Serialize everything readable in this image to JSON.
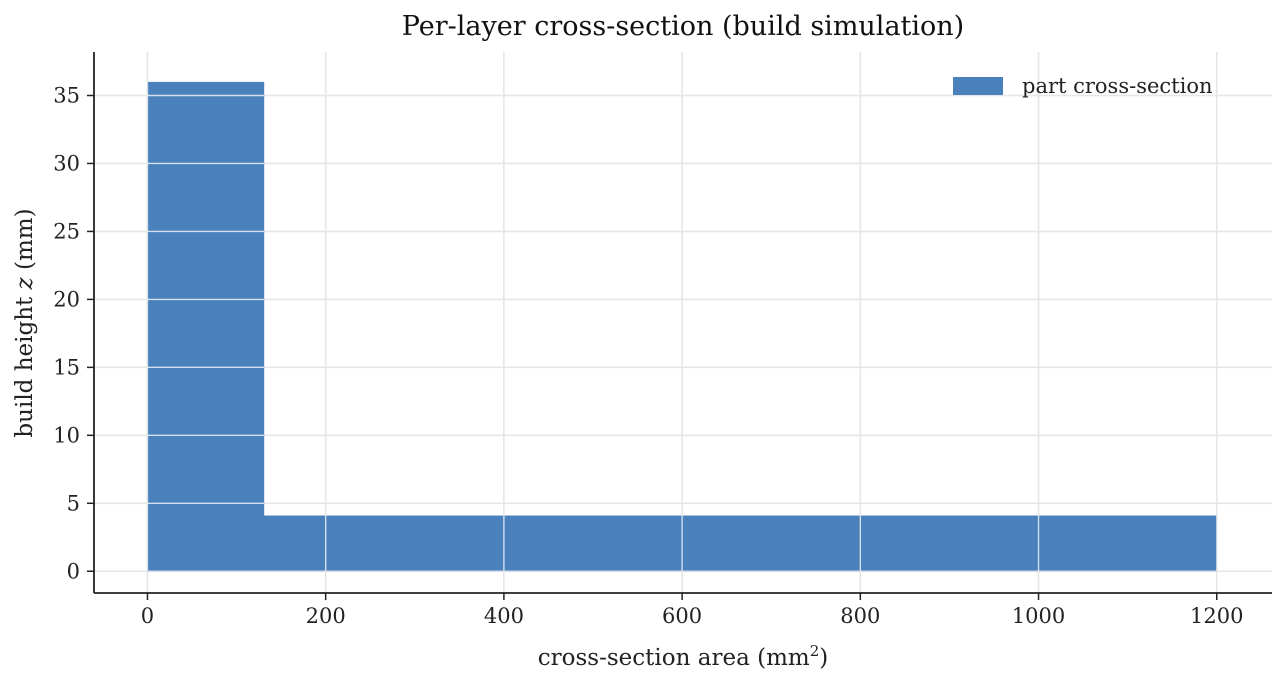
{
  "chart_data": {
    "type": "area",
    "title": "Per-layer cross-section (build simulation)",
    "xlabel": "cross-section area (mm²)",
    "xlabel_base": "cross-section area (mm",
    "xlabel_sup": "2",
    "xlabel_end": ")",
    "ylabel": "build height z (mm)",
    "ylabel_pre": "build height ",
    "ylabel_var": "z",
    "ylabel_post": " (mm)",
    "xlim": [
      -60,
      1262
    ],
    "ylim": [
      -1.6,
      38.2
    ],
    "x_ticks": [
      0,
      200,
      400,
      600,
      800,
      1000,
      1200
    ],
    "y_ticks": [
      0,
      5,
      10,
      15,
      20,
      25,
      30,
      35
    ],
    "grid": true,
    "legend_position": "top-right",
    "series": [
      {
        "name": "part cross-section",
        "color": "#4a80bb",
        "segments": [
          {
            "z_start": 0,
            "z_end": 4.1,
            "area": 1200
          },
          {
            "z_start": 4.1,
            "z_end": 36.0,
            "area": 131
          }
        ]
      }
    ]
  }
}
